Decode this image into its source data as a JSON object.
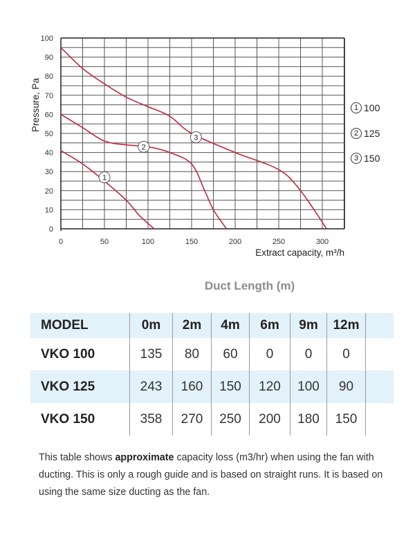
{
  "chart_data": {
    "type": "line",
    "title": "",
    "xlabel": "Extract capacity, m³/h",
    "ylabel": "Pressure, Pa",
    "xlim": [
      0,
      325
    ],
    "ylim": [
      0,
      100
    ],
    "x_ticks": [
      0,
      50,
      100,
      150,
      200,
      250,
      300
    ],
    "y_ticks": [
      0,
      10,
      20,
      30,
      40,
      50,
      60,
      70,
      80,
      90,
      100
    ],
    "grid": true,
    "legend_position": "right",
    "series": [
      {
        "name": "100",
        "marker_label": "1",
        "color": "#c0283c",
        "x": [
          0,
          25,
          50,
          75,
          90,
          107
        ],
        "y": [
          41,
          34,
          25,
          15,
          7,
          0
        ]
      },
      {
        "name": "125",
        "marker_label": "2",
        "color": "#c0283c",
        "x": [
          0,
          25,
          50,
          75,
          100,
          125,
          150,
          165,
          175,
          190
        ],
        "y": [
          60,
          53,
          46,
          44,
          43,
          40,
          34,
          20,
          10,
          0
        ]
      },
      {
        "name": "150",
        "marker_label": "3",
        "color": "#c0283c",
        "x": [
          0,
          25,
          50,
          75,
          100,
          125,
          150,
          200,
          250,
          275,
          305
        ],
        "y": [
          95,
          84,
          76,
          69,
          64,
          59,
          50,
          40,
          31,
          20,
          0
        ]
      }
    ]
  },
  "chart": {
    "ylabel": "Pressure, Pa",
    "xlabel": "Extract capacity, m³/h",
    "y_ticks": [
      "100",
      "90",
      "80",
      "70",
      "60",
      "50",
      "40",
      "30",
      "20",
      "10",
      "0"
    ],
    "x_ticks": [
      "0",
      "50",
      "100",
      "150",
      "200",
      "250",
      "300"
    ],
    "legend": [
      {
        "num": "1",
        "label": "100"
      },
      {
        "num": "2",
        "label": "125"
      },
      {
        "num": "3",
        "label": "150"
      }
    ],
    "curve_color": "#c0283c",
    "grid_color": "#555555"
  },
  "table": {
    "title": "Duct Length (m)",
    "header": [
      "MODEL",
      "0m",
      "2m",
      "4m",
      "6m",
      "9m",
      "12m"
    ],
    "rows": [
      {
        "model": "VKO 100",
        "values": [
          "135",
          "80",
          "60",
          "0",
          "0",
          "0"
        ]
      },
      {
        "model": "VKO 125",
        "values": [
          "243",
          "160",
          "150",
          "120",
          "100",
          "90"
        ]
      },
      {
        "model": "VKO 150",
        "values": [
          "358",
          "270",
          "250",
          "200",
          "180",
          "150"
        ]
      }
    ],
    "shade_color": "#e3f1fa"
  },
  "note": {
    "before_bold": "This table shows ",
    "bold": "approximate",
    "after_bold": " capacity loss (m3/hr) when using the fan with ducting. This is only a rough guide and is based on straight runs. It is based on using the same size ducting as the fan."
  }
}
